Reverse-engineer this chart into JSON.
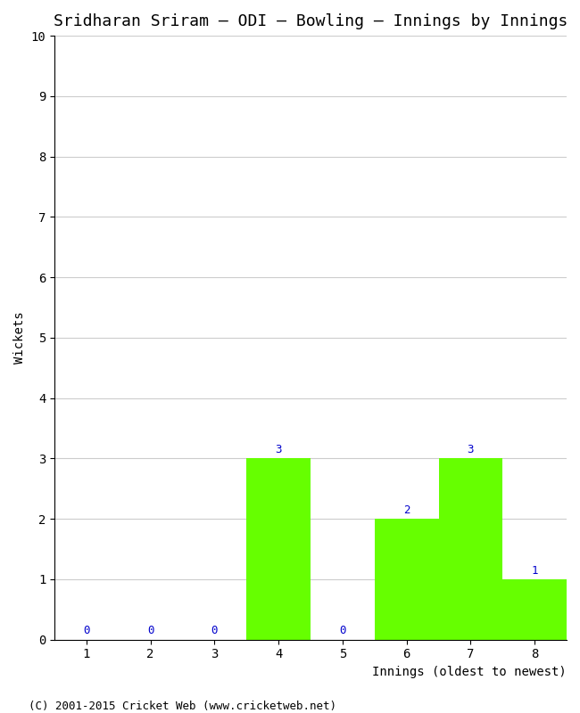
{
  "title": "Sridharan Sriram – ODI – Bowling – Innings by Innings",
  "xlabel": "Innings (oldest to newest)",
  "ylabel": "Wickets",
  "categories": [
    "1",
    "2",
    "3",
    "4",
    "5",
    "6",
    "7",
    "8"
  ],
  "values": [
    0,
    0,
    0,
    3,
    0,
    2,
    3,
    1
  ],
  "bar_color": "#66ff00",
  "bar_edge_color": "#66ff00",
  "label_color": "#0000cc",
  "ylim": [
    0,
    10
  ],
  "yticks": [
    0,
    1,
    2,
    3,
    4,
    5,
    6,
    7,
    8,
    9,
    10
  ],
  "background_color": "#ffffff",
  "grid_color": "#cccccc",
  "title_fontsize": 13,
  "axis_label_fontsize": 10,
  "tick_fontsize": 10,
  "value_label_fontsize": 9,
  "footer_text": "(C) 2001-2015 Cricket Web (www.cricketweb.net)",
  "footer_fontsize": 9
}
